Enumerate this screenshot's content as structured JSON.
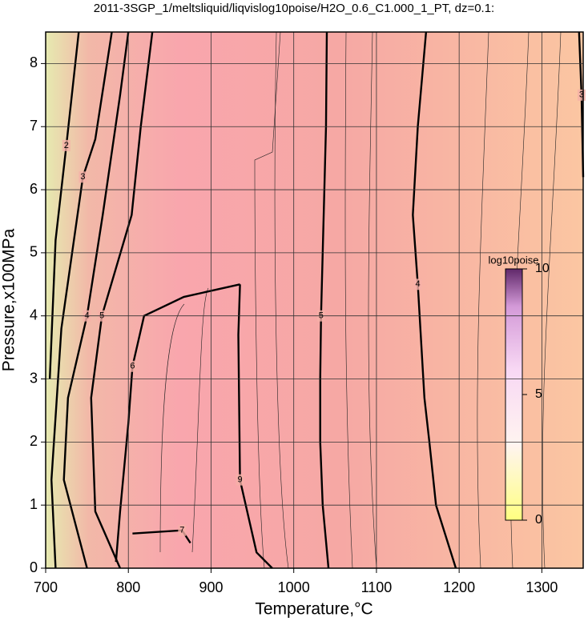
{
  "chart_data": {
    "type": "contour",
    "title": "2011-3SGP_1/meltsliquid/liqvislog10poise/H2O_0.6_C1.000_1_PT, dz=0.1:",
    "x_label": "Temperature,°C",
    "y_label": "Pressure,x100MPa",
    "xlim": [
      700,
      1350
    ],
    "ylim": [
      0,
      8.5
    ],
    "xticks": [
      700,
      800,
      900,
      1000,
      1100,
      1200,
      1300
    ],
    "yticks": [
      0,
      1,
      2,
      3,
      4,
      5,
      6,
      7,
      8
    ],
    "grid": true,
    "colorbar": {
      "label": "log10poise",
      "lim": [
        0,
        10
      ],
      "ticks": [
        0,
        5,
        10
      ]
    },
    "contours": [
      {
        "level": 5,
        "x": [
          1042,
          1035,
          1032,
          1032,
          1033,
          1035,
          1037,
          1039,
          1040
        ],
        "y": [
          0,
          1,
          2,
          3,
          4,
          5,
          6,
          7,
          8.5
        ]
      },
      {
        "level": 4,
        "x": [
          1196,
          1172,
          1164,
          1158,
          1150,
          1144,
          1150,
          1160
        ],
        "y": [
          0,
          1,
          2,
          2.7,
          4.5,
          5.6,
          7,
          8.5
        ]
      },
      {
        "level": 3,
        "x": [
          1345,
          1348,
          1350
        ],
        "y": [
          8.5,
          7.5,
          6.2
        ]
      },
      {
        "level": 6,
        "x": [
          785,
          790,
          800,
          805,
          819,
          867,
          935
        ],
        "y": [
          0.1,
          0.9,
          2.3,
          3.2,
          4.0,
          4.3,
          4.5
        ]
      },
      {
        "level": 9,
        "x": [
          935,
          933,
          935,
          955,
          974
        ],
        "y": [
          4.5,
          3.7,
          1.4,
          0.25,
          0
        ]
      },
      {
        "level": 5,
        "x": [
          790,
          760,
          755,
          768,
          804,
          815,
          829
        ],
        "y": [
          0,
          0.9,
          2.7,
          4,
          5.6,
          7,
          8.5
        ]
      },
      {
        "level": 4,
        "x": [
          750,
          722,
          727,
          750,
          769,
          790,
          800
        ],
        "y": [
          0,
          1.4,
          2.7,
          4,
          5.6,
          7.5,
          8.5
        ]
      },
      {
        "level": 3,
        "x": [
          712,
          707,
          719,
          745,
          760,
          780
        ],
        "y": [
          0,
          1.4,
          3.8,
          6.2,
          6.8,
          8.5
        ]
      },
      {
        "level": 2,
        "x": [
          705,
          712,
          725,
          740
        ],
        "y": [
          3,
          5.2,
          6.7,
          8.5
        ]
      },
      {
        "level": 7,
        "x": [
          805,
          865,
          875
        ],
        "y": [
          0.55,
          0.6,
          0.4
        ]
      }
    ]
  }
}
